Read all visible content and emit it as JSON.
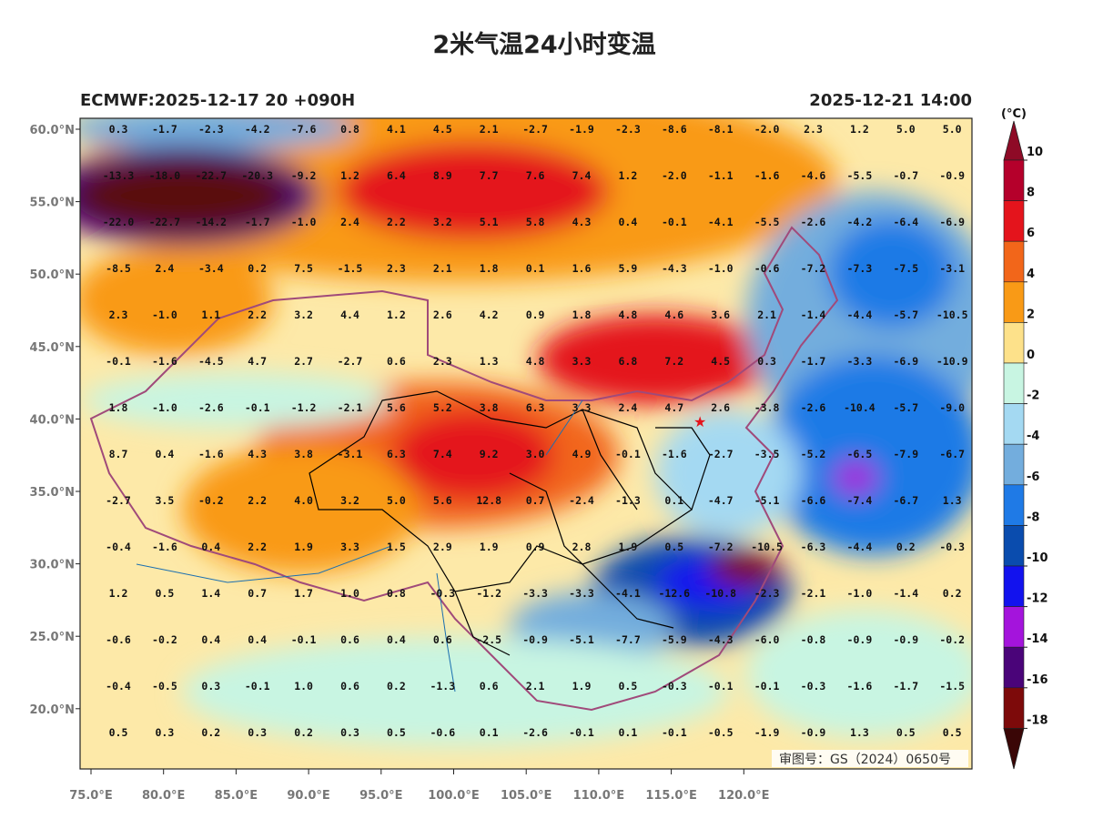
{
  "title": "2米气温24小时变温",
  "subtitle_left": "ECMWF:2025-12-17 20 +090H",
  "subtitle_right": "2025-12-21 14:00",
  "footer": "审图号：GS（2024）0650号",
  "lat_labels": [
    "60.0°N",
    "55.0°N",
    "50.0°N",
    "45.0°N",
    "40.0°N",
    "35.0°N",
    "30.0°N",
    "25.0°N",
    "20.0°N"
  ],
  "lon_labels": [
    "75.0°E",
    "80.0°E",
    "85.0°E",
    "90.0°E",
    "95.0°E",
    "100.0°E",
    "105.0°E",
    "110.0°E",
    "115.0°E",
    "120.0°E"
  ],
  "colorbar": {
    "unit": "(°C)",
    "ticks": [
      10,
      8,
      6,
      4,
      2,
      0,
      -2,
      -4,
      -6,
      -8,
      -10,
      -12,
      -14,
      -16,
      -18
    ],
    "colors": [
      "#8e0a26",
      "#b5002b",
      "#e4141c",
      "#f2661a",
      "#f99a16",
      "#fde18a",
      "#c8f5e2",
      "#a4d9f2",
      "#73addd",
      "#1f7ae6",
      "#0a4cae",
      "#1212ee",
      "#a414dc",
      "#4a0479",
      "#7d0a0a",
      "#3a0606"
    ]
  },
  "grid": {
    "rows": [
      [
        "0.3",
        "-1.7",
        "-2.3",
        "-4.2",
        "-7.6",
        "0.8",
        "4.1",
        "4.5",
        "2.1",
        "-2.7",
        "-1.9",
        "-2.3",
        "-8.6",
        "-8.1",
        "-2.0",
        "2.3",
        "1.2",
        "5.0",
        "5.0"
      ],
      [
        "-13.3",
        "-18.0",
        "-22.7",
        "-20.3",
        "-9.2",
        "1.2",
        "6.4",
        "8.9",
        "7.7",
        "7.6",
        "7.4",
        "1.2",
        "-2.0",
        "-1.1",
        "-1.6",
        "-4.6",
        "-5.5",
        "-0.7",
        "-0.9"
      ],
      [
        "-22.0",
        "-22.7",
        "-14.2",
        "-1.7",
        "-1.0",
        "2.4",
        "2.2",
        "3.2",
        "5.1",
        "5.8",
        "4.3",
        "0.4",
        "-0.1",
        "-4.1",
        "-5.5",
        "-2.6",
        "-4.2",
        "-6.4",
        "-6.9"
      ],
      [
        "-8.5",
        "2.4",
        "-3.4",
        "0.2",
        "7.5",
        "-1.5",
        "2.3",
        "2.1",
        "1.8",
        "0.1",
        "1.6",
        "5.9",
        "-4.3",
        "-1.0",
        "-0.6",
        "-7.2",
        "-7.3",
        "-7.5",
        "-3.1"
      ],
      [
        "2.3",
        "-1.0",
        "1.1",
        "2.2",
        "3.2",
        "4.4",
        "1.2",
        "2.6",
        "4.2",
        "0.9",
        "1.8",
        "4.8",
        "4.6",
        "3.6",
        "2.1",
        "-1.4",
        "-4.4",
        "-5.7",
        "-10.5"
      ],
      [
        "-0.1",
        "-1.6",
        "-4.5",
        "4.7",
        "2.7",
        "-2.7",
        "0.6",
        "2.3",
        "1.3",
        "4.8",
        "3.3",
        "6.8",
        "7.2",
        "4.5",
        "0.3",
        "-1.7",
        "-3.3",
        "-6.9",
        "-10.9"
      ],
      [
        "1.8",
        "-1.0",
        "-2.6",
        "-0.1",
        "-1.2",
        "-2.1",
        "5.6",
        "5.2",
        "3.8",
        "6.3",
        "3.3",
        "2.4",
        "4.7",
        "2.6",
        "-3.8",
        "-2.6",
        "-10.4",
        "-5.7",
        "-9.0"
      ],
      [
        "8.7",
        "0.4",
        "-1.6",
        "4.3",
        "3.8",
        "-3.1",
        "6.3",
        "7.4",
        "9.2",
        "3.0",
        "4.9",
        "-0.1",
        "-1.6",
        "-2.7",
        "-3.5",
        "-5.2",
        "-6.5",
        "-7.9",
        "-6.7"
      ],
      [
        "-2.7",
        "3.5",
        "-0.2",
        "2.2",
        "4.0",
        "3.2",
        "5.0",
        "5.6",
        "12.8",
        "0.7",
        "-2.4",
        "-1.3",
        "0.1",
        "-4.7",
        "-5.1",
        "-6.6",
        "-7.4",
        "-6.7",
        "1.3"
      ],
      [
        "-0.4",
        "-1.6",
        "0.4",
        "2.2",
        "1.9",
        "3.3",
        "1.5",
        "2.9",
        "1.9",
        "0.9",
        "2.8",
        "1.9",
        "0.5",
        "-7.2",
        "-10.5",
        "-6.3",
        "-4.4",
        "0.2",
        "-0.3"
      ],
      [
        "1.2",
        "0.5",
        "1.4",
        "0.7",
        "1.7",
        "1.0",
        "0.8",
        "-0.3",
        "-1.2",
        "-3.3",
        "-3.3",
        "-4.1",
        "-12.6",
        "-10.8",
        "-2.3",
        "-2.1",
        "-1.0",
        "-1.4",
        "0.2"
      ],
      [
        "-0.6",
        "-0.2",
        "0.4",
        "0.4",
        "-0.1",
        "0.6",
        "0.4",
        "0.6",
        "-2.5",
        "-0.9",
        "-5.1",
        "-7.7",
        "-5.9",
        "-4.3",
        "-6.0",
        "-0.8",
        "-0.9",
        "-0.9",
        "-0.2"
      ],
      [
        "-0.4",
        "-0.5",
        "0.3",
        "-0.1",
        "1.0",
        "0.6",
        "0.2",
        "-1.3",
        "0.6",
        "2.1",
        "1.9",
        "0.5",
        "-0.3",
        "-0.1",
        "-0.1",
        "-0.3",
        "-1.6",
        "-1.7",
        "-1.5"
      ],
      [
        "0.5",
        "0.3",
        "0.2",
        "0.3",
        "0.2",
        "0.3",
        "0.5",
        "-0.6",
        "0.1",
        "-2.6",
        "-0.1",
        "0.1",
        "-0.1",
        "-0.5",
        "-1.9",
        "-0.9",
        "1.3",
        "0.5",
        "0.5"
      ]
    ]
  }
}
